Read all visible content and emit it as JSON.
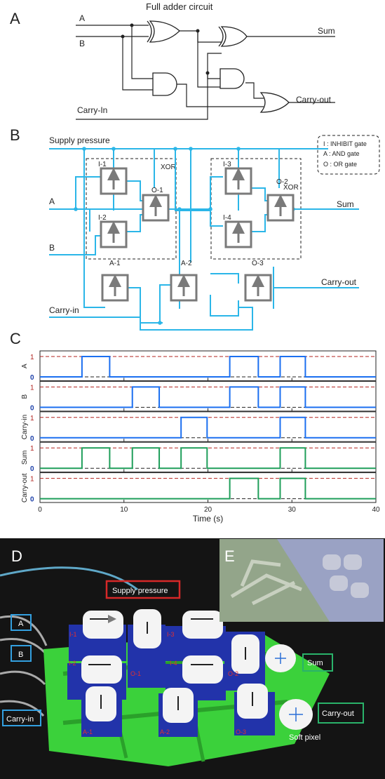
{
  "panels": {
    "a": {
      "letter": "A",
      "title": "Full adder circuit",
      "in_a": "A",
      "in_b": "B",
      "in_c": "Carry-In",
      "out_sum": "Sum",
      "out_cout": "Carry-out"
    },
    "b": {
      "letter": "B",
      "supply": "Supply pressure",
      "in_a": "A",
      "in_b": "B",
      "in_c": "Carry-in",
      "out_sum": "Sum",
      "out_cout": "Carry-out",
      "xor1": "XOR",
      "xor2": "XOR",
      "gates": {
        "i1": "I-1",
        "i2": "I-2",
        "o1": "O-1",
        "i3": "I-3",
        "i4": "I-4",
        "o2": "O-2",
        "a1": "A-1",
        "a2": "A-2",
        "o3": "O-3"
      },
      "legend": [
        "I   : INHIBIT gate",
        "A : AND gate",
        "O : OR gate"
      ]
    },
    "c": {
      "letter": "C"
    },
    "d": {
      "letter": "D",
      "supply": "Supply pressure",
      "in_a": "A",
      "in_b": "B",
      "in_c": "Carry-in",
      "out_sum": "Sum",
      "out_cout": "Carry-out",
      "soft_pixel": "Soft pixel",
      "gates": {
        "i1": "I-1",
        "i2": "I-2",
        "o1": "O-1",
        "i3": "I-3",
        "i4": "I-4",
        "o2": "O-2",
        "a1": "A-1",
        "a2": "A-2",
        "o3": "O-3"
      }
    },
    "e": {
      "letter": "E"
    }
  },
  "colors": {
    "input_trace": "#1b6ff0",
    "output_trace": "#1f9e5a",
    "dashed_high": "#b0221e",
    "circuit_blue": "#2bb6e8",
    "gate_gray": "#7a7a7a",
    "photo_green": "#3bd13b"
  },
  "chart_data": {
    "type": "line",
    "xlabel": "Time (s)",
    "xlim": [
      0,
      40
    ],
    "xticks": [
      "0",
      "10",
      "20",
      "30",
      "40"
    ],
    "ylim": [
      0,
      1
    ],
    "yticks": [
      "1",
      "0"
    ],
    "series": [
      {
        "name": "A",
        "kind": "input",
        "intervals": [
          [
            5,
            8.3
          ],
          [
            22.6,
            26
          ],
          [
            28.6,
            31.6
          ]
        ]
      },
      {
        "name": "B",
        "kind": "input",
        "intervals": [
          [
            11,
            14.2
          ],
          [
            22.6,
            26
          ],
          [
            28.6,
            31.6
          ]
        ]
      },
      {
        "name": "Carry-in",
        "kind": "input",
        "intervals": [
          [
            16.8,
            19.9
          ],
          [
            28.6,
            31.6
          ]
        ]
      },
      {
        "name": "Sum",
        "kind": "output",
        "intervals": [
          [
            5,
            8.3
          ],
          [
            11,
            14.2
          ],
          [
            16.8,
            19.9
          ],
          [
            28.6,
            31.6
          ]
        ]
      },
      {
        "name": "Carry-out",
        "kind": "output",
        "intervals": [
          [
            22.6,
            26
          ],
          [
            28.6,
            31.6
          ]
        ]
      }
    ]
  }
}
